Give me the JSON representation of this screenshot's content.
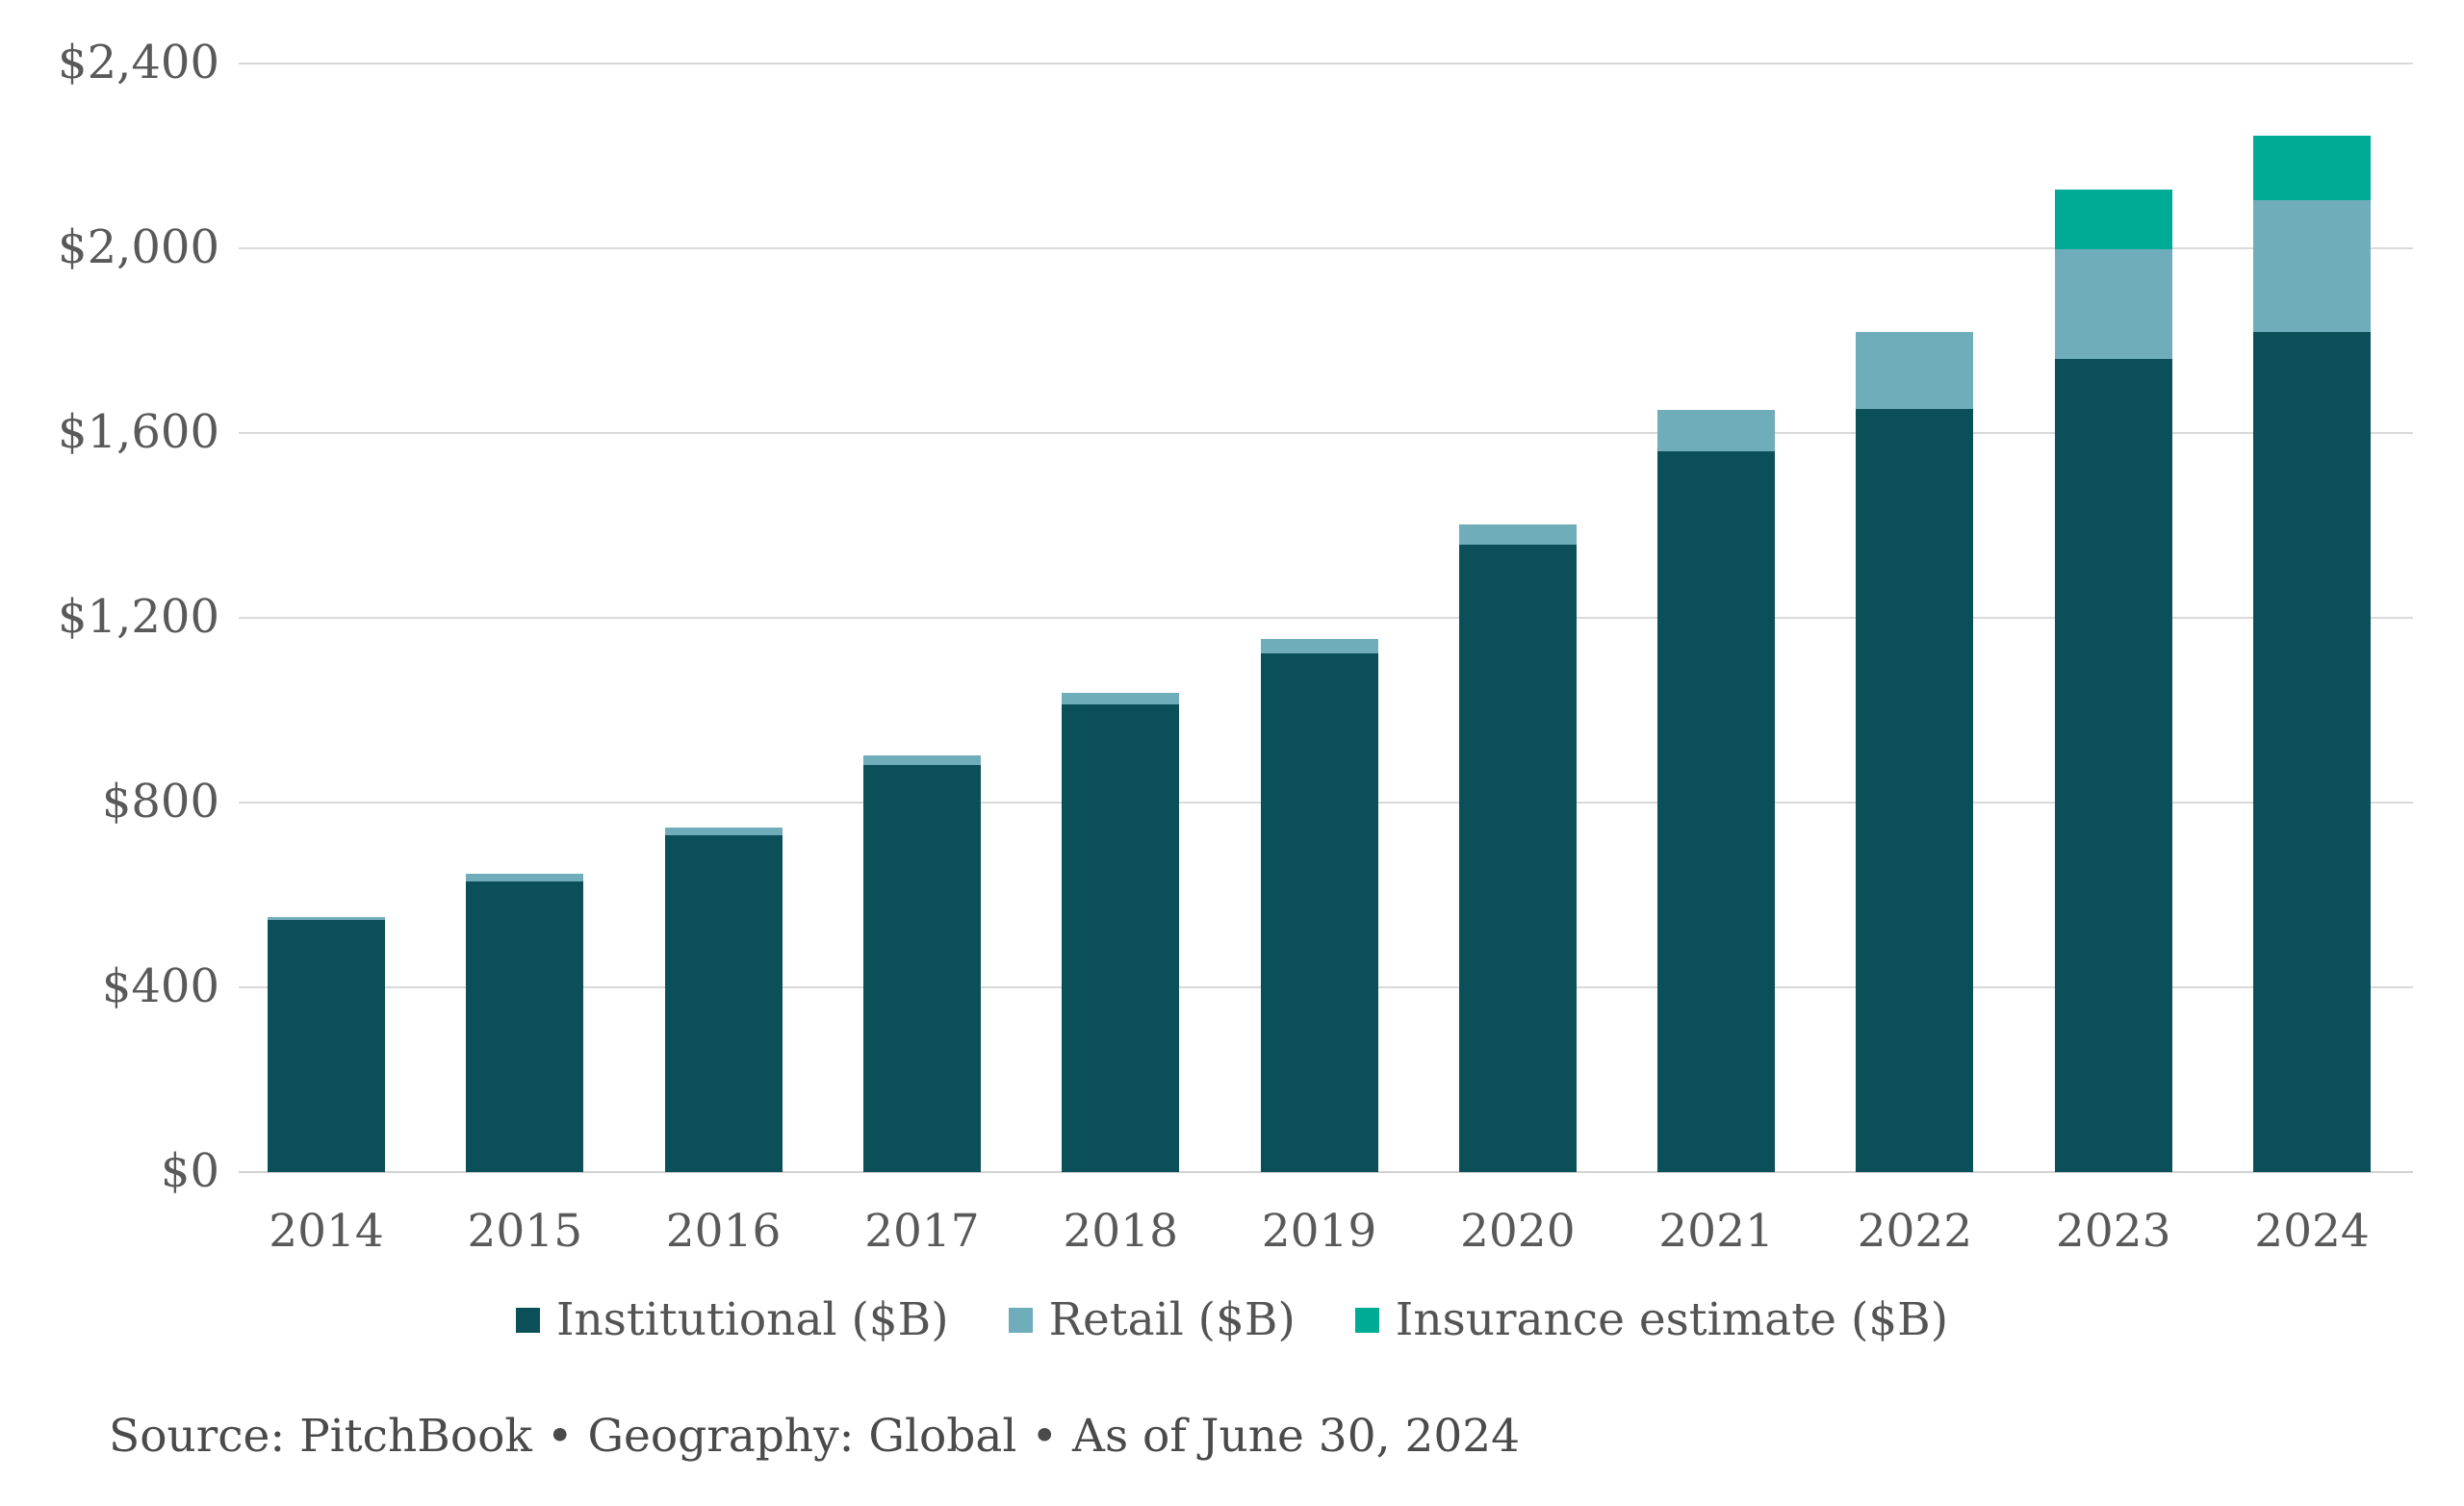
{
  "chart_data": {
    "type": "bar",
    "stacked": true,
    "orientation": "vertical",
    "title": "",
    "xlabel": "",
    "ylabel": "",
    "categories": [
      "2014",
      "2015",
      "2016",
      "2017",
      "2018",
      "2019",
      "2020",
      "2021",
      "2022",
      "2023",
      "2024"
    ],
    "series": [
      {
        "name": "Institutional ($B)",
        "color": "#0B4F58",
        "values": [
          546,
          629,
          729,
          881,
          1012,
          1122,
          1358,
          1560,
          1652,
          1760,
          1819
        ]
      },
      {
        "name": "Retail ($B)",
        "color": "#6FADBA",
        "values": [
          7,
          16,
          17,
          22,
          26,
          33,
          44,
          90,
          167,
          238,
          285
        ]
      },
      {
        "name": "Insurance estimate ($B)",
        "color": "#00AB96",
        "values": [
          0,
          0,
          0,
          0,
          0,
          0,
          0,
          0,
          0,
          129,
          139
        ]
      }
    ],
    "totals": [
      553,
      645,
      746,
      903,
      1038,
      1155,
      1402,
      1650,
      1819,
      2127,
      2243
    ],
    "y_axis": {
      "min": 0,
      "max": 2400,
      "tick_values": [
        0,
        400,
        800,
        1200,
        1600,
        2000,
        2400
      ],
      "tick_labels": [
        "$0",
        "$400",
        "$800",
        "$1,200",
        "$1,600",
        "$2,000",
        "$2,400"
      ],
      "gridlines": true
    },
    "legend_position": "bottom-center",
    "grid_on": true
  },
  "colors": {
    "institutional": "#0B4F58",
    "retail": "#6FADBA",
    "insurance": "#00AB96",
    "gridline": "#D9D9D9",
    "tick_text": "#595959",
    "legend_text": "#545454",
    "source_text": "#4A4A4A",
    "background": "#FFFFFF"
  },
  "source_note": "Source: PitchBook • Geography: Global • As of June 30, 2024"
}
